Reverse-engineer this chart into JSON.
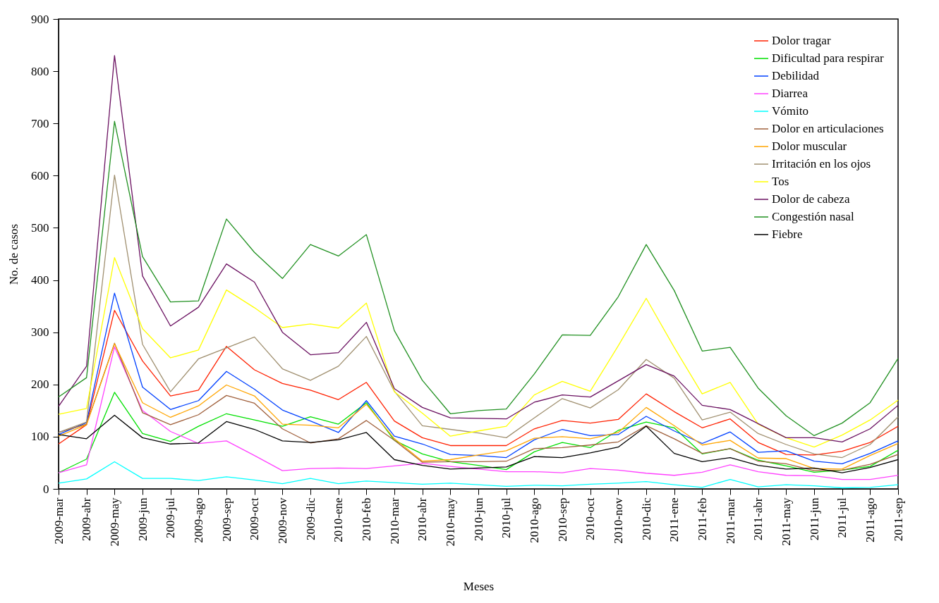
{
  "chart_data": {
    "type": "line",
    "xlabel": "Meses",
    "ylabel": "No. de casos",
    "categories": [
      "2009-mar",
      "2009-abr",
      "2009-may",
      "2009-jun",
      "2009-jul",
      "2009-ago",
      "2009-sep",
      "2009-oct",
      "2009-nov",
      "2009-dic",
      "2010-ene",
      "2010-feb",
      "2010-mar",
      "2010-abr",
      "2010-may",
      "2010-jun",
      "2010-jul",
      "2010-ago",
      "2010-sep",
      "2010-oct",
      "2010-nov",
      "2010-dic",
      "2011-ene",
      "2011-feb",
      "2011-mar",
      "2011-abr",
      "2011-may",
      "2011-jun",
      "2011-jul",
      "2011-ago",
      "2011-sep"
    ],
    "ylim": [
      0,
      900
    ],
    "yticks": [
      0,
      100,
      200,
      300,
      400,
      500,
      600,
      700,
      800,
      900
    ],
    "grid": false,
    "legend": "top right",
    "marker": "none",
    "line_style": "solid",
    "series": [
      {
        "name": "Dolor tragar",
        "color": "#ff2000",
        "values": [
          86,
          123,
          342,
          245,
          178,
          189,
          273,
          228,
          202,
          189,
          171,
          204,
          130,
          98,
          83,
          83,
          83,
          115,
          131,
          126,
          133,
          182,
          148,
          117,
          134,
          89,
          66,
          65,
          72,
          89,
          120
        ]
      },
      {
        "name": "Dificultad para respirar",
        "color": "#00e000",
        "values": [
          31,
          57,
          185,
          106,
          91,
          120,
          144,
          132,
          120,
          138,
          124,
          165,
          93,
          67,
          52,
          45,
          37,
          71,
          89,
          79,
          112,
          128,
          117,
          67,
          77,
          55,
          44,
          32,
          36,
          43,
          74
        ]
      },
      {
        "name": "Debilidad",
        "color": "#0040ff",
        "values": [
          104,
          127,
          375,
          195,
          152,
          169,
          225,
          191,
          151,
          130,
          108,
          169,
          101,
          86,
          66,
          64,
          60,
          94,
          114,
          102,
          104,
          139,
          111,
          87,
          109,
          70,
          73,
          53,
          48,
          68,
          92
        ]
      },
      {
        "name": "Diarrea",
        "color": "#ff40ff",
        "values": [
          31,
          46,
          272,
          150,
          110,
          87,
          92,
          64,
          35,
          39,
          40,
          39,
          44,
          49,
          43,
          38,
          33,
          33,
          31,
          39,
          36,
          30,
          26,
          32,
          46,
          33,
          26,
          25,
          18,
          18,
          26
        ]
      },
      {
        "name": "Vómito",
        "color": "#00ffff",
        "values": [
          11,
          19,
          52,
          20,
          20,
          16,
          23,
          17,
          10,
          20,
          10,
          15,
          12,
          9,
          11,
          8,
          5,
          7,
          6,
          9,
          11,
          14,
          8,
          3,
          18,
          4,
          8,
          6,
          2,
          3,
          8
        ]
      },
      {
        "name": "Dolor en articulaciones",
        "color": "#a0603c",
        "values": [
          108,
          124,
          279,
          146,
          123,
          142,
          179,
          164,
          115,
          88,
          96,
          131,
          93,
          51,
          52,
          52,
          53,
          77,
          79,
          84,
          90,
          121,
          96,
          68,
          77,
          53,
          48,
          35,
          36,
          47,
          66
        ]
      },
      {
        "name": "Dolor muscular",
        "color": "#ffa500",
        "values": [
          101,
          123,
          278,
          165,
          137,
          159,
          199,
          178,
          124,
          122,
          117,
          162,
          96,
          53,
          56,
          65,
          73,
          97,
          100,
          96,
          108,
          156,
          121,
          84,
          93,
          59,
          58,
          39,
          38,
          64,
          87
        ]
      },
      {
        "name": "Irritación en los ojos",
        "color": "#a09070",
        "values": [
          108,
          128,
          601,
          277,
          186,
          249,
          270,
          291,
          230,
          208,
          235,
          292,
          187,
          121,
          114,
          107,
          98,
          136,
          173,
          155,
          190,
          248,
          212,
          132,
          147,
          106,
          85,
          67,
          60,
          85,
          138
        ]
      },
      {
        "name": "Tos",
        "color": "#ffff00",
        "values": [
          143,
          154,
          443,
          307,
          251,
          266,
          381,
          347,
          309,
          316,
          308,
          356,
          186,
          145,
          101,
          111,
          120,
          180,
          206,
          187,
          274,
          365,
          271,
          182,
          204,
          124,
          98,
          80,
          103,
          132,
          170
        ]
      },
      {
        "name": "Dolor de cabeza",
        "color": "#6a1060",
        "values": [
          158,
          235,
          830,
          408,
          312,
          348,
          431,
          396,
          300,
          257,
          261,
          319,
          192,
          156,
          136,
          135,
          134,
          166,
          180,
          176,
          207,
          238,
          216,
          160,
          152,
          125,
          98,
          98,
          90,
          115,
          160
        ]
      },
      {
        "name": "Congestión nasal",
        "color": "#209020",
        "values": [
          176,
          213,
          704,
          445,
          358,
          360,
          517,
          453,
          403,
          468,
          446,
          487,
          303,
          208,
          144,
          150,
          153,
          220,
          295,
          294,
          368,
          468,
          380,
          264,
          271,
          193,
          140,
          102,
          126,
          165,
          250
        ]
      },
      {
        "name": "Fiebre",
        "color": "#000000",
        "values": [
          104,
          96,
          141,
          98,
          86,
          88,
          129,
          114,
          92,
          89,
          94,
          108,
          56,
          45,
          38,
          40,
          42,
          62,
          60,
          69,
          80,
          120,
          68,
          52,
          60,
          45,
          38,
          40,
          31,
          41,
          56
        ]
      }
    ]
  }
}
